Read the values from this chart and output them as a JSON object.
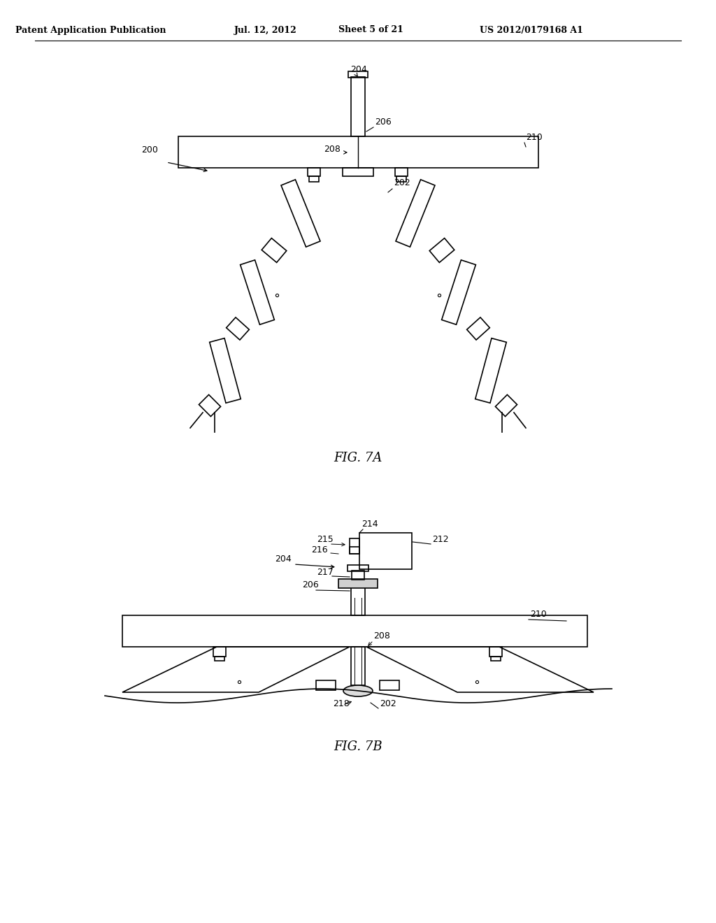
{
  "bg_color": "#ffffff",
  "line_color": "#000000",
  "header_text": "Patent Application Publication",
  "header_date": "Jul. 12, 2012",
  "header_sheet": "Sheet 5 of 21",
  "header_patent": "US 2012/0179168 A1",
  "fig7a_label": "FIG. 7A",
  "fig7b_label": "FIG. 7B"
}
